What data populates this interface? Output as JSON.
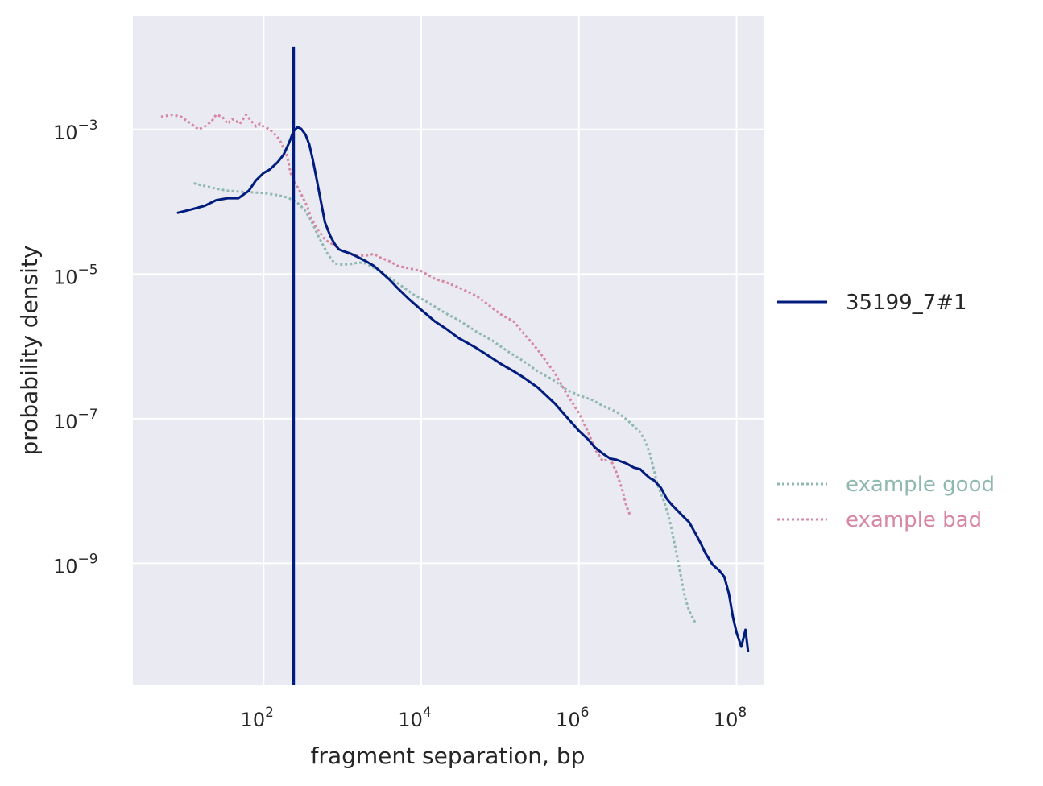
{
  "chart_data": {
    "type": "line",
    "xlabel": "fragment separation, bp",
    "ylabel": "probability density",
    "xscale": "log",
    "yscale": "log",
    "xlim": [
      2.2,
      220000000.0
    ],
    "ylim": [
      2.1e-11,
      0.037
    ],
    "grid": true,
    "legend_placement": "right",
    "colors": {
      "plot_background": "#eaeaf2",
      "grid": "#ffffff",
      "text": "#262626"
    },
    "x_ticks": [
      {
        "value": 100,
        "base": "10",
        "exp": "2"
      },
      {
        "value": 10000,
        "base": "10",
        "exp": "4"
      },
      {
        "value": 1000000,
        "base": "10",
        "exp": "6"
      },
      {
        "value": 100000000,
        "base": "10",
        "exp": "8"
      }
    ],
    "y_ticks": [
      {
        "value": 0.001,
        "base": "10",
        "exp": "−3"
      },
      {
        "value": 1e-05,
        "base": "10",
        "exp": "−5"
      },
      {
        "value": 1e-07,
        "base": "10",
        "exp": "−7"
      },
      {
        "value": 1e-09,
        "base": "10",
        "exp": "−9"
      }
    ],
    "vline": {
      "x": 240,
      "y_top": 0.014,
      "y_bottom": 2.1e-11,
      "color": "#001c7f"
    },
    "series": [
      {
        "name": "35199_7#1",
        "color": "#001c7f",
        "style": "solid",
        "x": [
          8,
          12,
          18,
          25,
          35,
          48,
          65,
          80,
          100,
          120,
          150,
          180,
          210,
          240,
          270,
          300,
          340,
          380,
          420,
          470,
          520,
          600,
          700,
          800,
          900,
          1000,
          1300,
          1600,
          2000,
          2500,
          3000,
          4000,
          5000,
          7000,
          10000,
          15000,
          20000,
          30000,
          50000,
          70000,
          100000,
          150000,
          200000,
          300000,
          500000,
          700000,
          1000000,
          1300000,
          1600000,
          2000000,
          2500000,
          3000000,
          4000000,
          5000000,
          6000000,
          7000000,
          8000000,
          9000000,
          11000000,
          13000000,
          15000000,
          20000000,
          25000000,
          30000000,
          35000000,
          40000000,
          50000000,
          60000000,
          70000000,
          80000000,
          90000000,
          100000000,
          115000000,
          130000000,
          140000000
        ],
        "y": [
          7e-05,
          7.8e-05,
          8.8e-05,
          0.000105,
          0.000112,
          0.000112,
          0.000142,
          0.000198,
          0.00025,
          0.00028,
          0.00035,
          0.00045,
          0.00065,
          0.00095,
          0.00108,
          0.00102,
          0.00085,
          0.00062,
          0.00039,
          0.00021,
          0.000118,
          5.2e-05,
          3.4e-05,
          2.6e-05,
          2.2e-05,
          2.1e-05,
          1.9e-05,
          1.7e-05,
          1.5e-05,
          1.3e-05,
          1.1e-05,
          8.3e-06,
          6.4e-06,
          4.5e-06,
          3.2e-06,
          2.2e-06,
          1.8e-06,
          1.3e-06,
          9.5e-07,
          7.5e-07,
          5.8e-07,
          4.5e-07,
          3.7e-07,
          2.7e-07,
          1.6e-07,
          1.05e-07,
          6.8e-08,
          5.2e-08,
          4e-08,
          3.3e-08,
          2.8e-08,
          2.7e-08,
          2.4e-08,
          2.1e-08,
          2e-08,
          1.7e-08,
          1.5e-08,
          1.4e-08,
          1.1e-08,
          7.8e-09,
          6.5e-09,
          4.7e-09,
          3.7e-09,
          2.6e-09,
          1.9e-09,
          1.4e-09,
          9.5e-10,
          8e-10,
          6.5e-10,
          3.8e-10,
          1.8e-10,
          1.1e-10,
          7e-11,
          1.2e-10,
          6e-11
        ]
      },
      {
        "name": "example good",
        "color": "#8fb8b0",
        "style": "dotted",
        "x": [
          13,
          18,
          25,
          35,
          50,
          70,
          100,
          140,
          200,
          260,
          330,
          400,
          500,
          650,
          800,
          1000,
          1300,
          1600,
          2000,
          3000,
          5000,
          8000,
          12000,
          20000,
          30000,
          50000,
          80000,
          120000,
          200000,
          300000,
          500000,
          700000,
          1000000,
          1500000,
          2000000,
          3000000,
          4000000,
          5000000,
          6000000,
          7000000,
          8000000,
          9000000,
          10000000,
          12000000,
          14000000,
          16000000,
          18000000,
          20000000,
          22000000,
          25000000,
          30000000
        ],
        "y": [
          0.00018,
          0.000165,
          0.000152,
          0.000142,
          0.000138,
          0.000135,
          0.000132,
          0.000125,
          0.000115,
          0.0001,
          7.8e-05,
          5.5e-05,
          3.3e-05,
          1.9e-05,
          1.4e-05,
          1.35e-05,
          1.38e-05,
          1.45e-05,
          1.4e-05,
          1.1e-05,
          7.5e-06,
          5.2e-06,
          4.1e-06,
          2.9e-06,
          2.3e-06,
          1.6e-06,
          1.2e-06,
          8.8e-07,
          6.2e-07,
          4.5e-07,
          3.3e-07,
          2.5e-07,
          2.1e-07,
          1.8e-07,
          1.5e-07,
          1.25e-07,
          9.8e-08,
          7.8e-08,
          6.5e-08,
          4.8e-08,
          3.2e-08,
          1.9e-08,
          1.2e-08,
          7.2e-09,
          4.2e-09,
          2.1e-09,
          1.1e-09,
          6e-10,
          3.5e-10,
          2.2e-10,
          1.5e-10
        ]
      },
      {
        "name": "example bad",
        "color": "#d787a1",
        "style": "dotted",
        "x": [
          5,
          7,
          9,
          12,
          15,
          18,
          22,
          25,
          30,
          35,
          40,
          45,
          50,
          60,
          70,
          80,
          90,
          100,
          120,
          140,
          160,
          180,
          200,
          220,
          250,
          280,
          320,
          360,
          400,
          450,
          500,
          600,
          700,
          800,
          900,
          1000,
          1200,
          1500,
          2000,
          2500,
          3000,
          4000,
          5000,
          7000,
          10000,
          15000,
          20000,
          30000,
          50000,
          70000,
          100000,
          150000,
          200000,
          300000,
          500000,
          700000,
          1000000,
          1300000,
          1600000,
          2000000,
          2500000,
          3000000,
          3500000,
          4000000,
          4500000
        ],
        "y": [
          0.0015,
          0.0016,
          0.0015,
          0.0012,
          0.001,
          0.0011,
          0.0013,
          0.0016,
          0.0015,
          0.0012,
          0.0014,
          0.0013,
          0.0012,
          0.0016,
          0.0013,
          0.0011,
          0.0012,
          0.0011,
          0.001,
          0.00085,
          0.00072,
          0.00055,
          0.00042,
          0.00025,
          0.00018,
          0.00015,
          0.00011,
          8.5e-05,
          6e-05,
          4.8e-05,
          4e-05,
          3e-05,
          2.7e-05,
          2.5e-05,
          2.2e-05,
          2.1e-05,
          1.9e-05,
          1.8e-05,
          1.8e-05,
          1.9e-05,
          1.7e-05,
          1.5e-05,
          1.3e-05,
          1.2e-05,
          1.1e-05,
          8.5e-06,
          7.8e-06,
          6.5e-06,
          5e-06,
          3.8e-06,
          2.8e-06,
          2.2e-06,
          1.5e-06,
          9e-07,
          4.2e-07,
          2.2e-07,
          1.2e-07,
          6.6e-08,
          3.8e-08,
          2.6e-08,
          2.8e-08,
          1.8e-08,
          1.1e-08,
          6.2e-09,
          4.5e-09
        ]
      }
    ]
  }
}
